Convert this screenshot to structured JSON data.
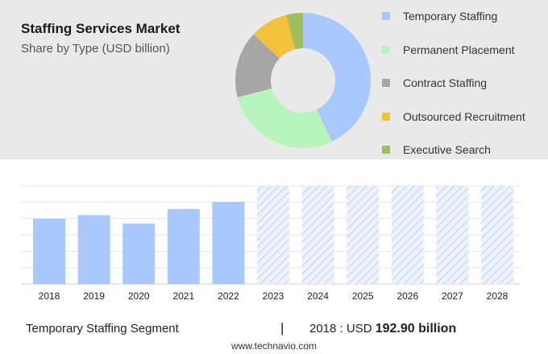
{
  "header": {
    "title": "Staffing Services Market",
    "subtitle": "Share by Type (USD billion)"
  },
  "chart_data": [
    {
      "type": "pie",
      "variant": "donut",
      "series": [
        {
          "name": "Temporary Staffing",
          "value": 43,
          "color": "#a9c8fc"
        },
        {
          "name": "Permanent Placement",
          "value": 28,
          "color": "#b9f4bd"
        },
        {
          "name": "Contract Staffing",
          "value": 16,
          "color": "#a6a6a6"
        },
        {
          "name": "Outsourced Recruitment",
          "value": 9,
          "color": "#f2c23a"
        },
        {
          "name": "Executive Search",
          "value": 4,
          "color": "#9ebf5d"
        }
      ],
      "legend_position": "right"
    },
    {
      "type": "bar",
      "categories": [
        "2018",
        "2019",
        "2020",
        "2021",
        "2022",
        "2023",
        "2024",
        "2025",
        "2026",
        "2027",
        "2028"
      ],
      "values": [
        192.9,
        204,
        179,
        222,
        243,
        null,
        null,
        null,
        null,
        null,
        null
      ],
      "forecast_categories": [
        "2023",
        "2024",
        "2025",
        "2026",
        "2027",
        "2028"
      ],
      "forecast_value": 290,
      "ylim": [
        0,
        300
      ],
      "grid": true,
      "bar_color": "#a9c8fc"
    }
  ],
  "footer": {
    "segment": "Temporary Staffing Segment",
    "divider": "|",
    "year": "2018",
    "separator": " : ",
    "unit": "USD ",
    "value": "192.90 billion",
    "source": "www.technavio.com"
  }
}
